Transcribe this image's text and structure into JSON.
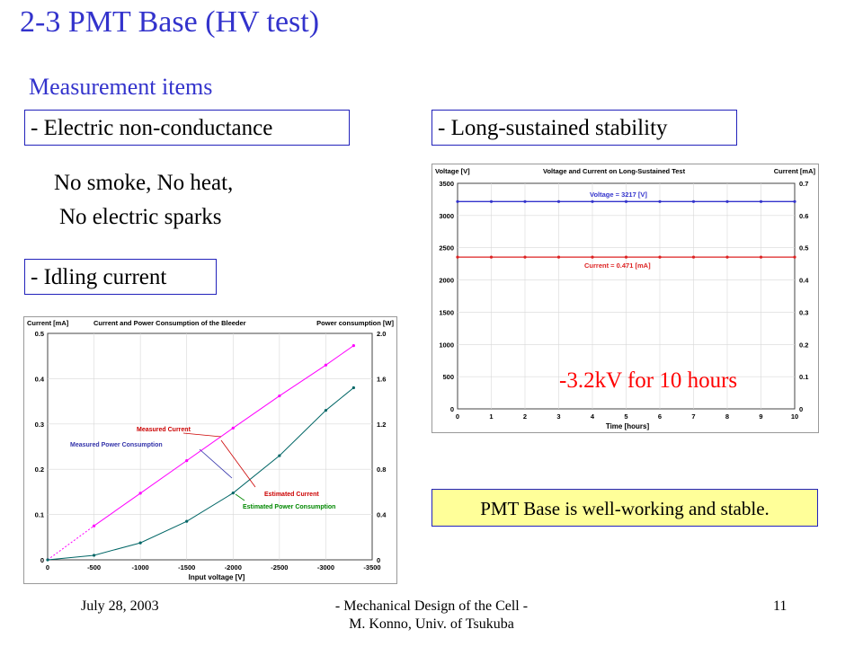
{
  "slide": {
    "title": "2-3 PMT Base (HV test)",
    "subtitle": "Measurement items",
    "item1": "- Electric non-conductance",
    "item1_desc_line1": "No smoke, No heat,",
    "item1_desc_line2": "No electric sparks",
    "item2": "- Idling current",
    "item3": "- Long-sustained stability",
    "hv_note": "-3.2kV for 10 hours",
    "conclusion": "PMT Base is well-working and stable.",
    "colors": {
      "title": "#3333cc",
      "box_border": "#2222bb",
      "note": "#ff0000",
      "conclusion_bg": "#ffff99"
    }
  },
  "footer": {
    "date": "July 28, 2003",
    "center_line1": "- Mechanical Design of the Cell -",
    "center_line2": "M. Konno, Univ. of Tsukuba",
    "page": "11"
  },
  "chart_data": [
    {
      "type": "line",
      "title": "Current and Power Consumption of the Bleeder",
      "xlabel": "Input voltage [V]",
      "ylabel": "Current [mA]",
      "y2label": "Power consumption [W]",
      "xlim": [
        0,
        -3500
      ],
      "ylim": [
        0,
        0.5
      ],
      "y2lim": [
        0,
        2.0
      ],
      "x_ticks": [
        "0",
        "-500",
        "-1000",
        "-1500",
        "-2000",
        "-2500",
        "-3000",
        "-3500"
      ],
      "y_ticks": [
        "0",
        "0.1",
        "0.2",
        "0.3",
        "0.4",
        "0.5"
      ],
      "y2_ticks": [
        "0",
        "0.4",
        "0.8",
        "1.2",
        "1.6",
        "2.0"
      ],
      "grid": true,
      "series": [
        {
          "name": "Measured Current",
          "axis": "left",
          "color": "#ff00ff",
          "x": [
            -500,
            -1000,
            -1500,
            -2000,
            -2500,
            -3000,
            -3300
          ],
          "y": [
            0.075,
            0.147,
            0.219,
            0.291,
            0.362,
            0.43,
            0.473
          ]
        },
        {
          "name": "Measured Power Consumption",
          "axis": "right",
          "color": "#006666",
          "x": [
            0,
            -500,
            -1000,
            -1500,
            -2000,
            -2500,
            -3000,
            -3300
          ],
          "y": [
            0.0,
            0.04,
            0.15,
            0.34,
            0.59,
            0.92,
            1.32,
            1.52
          ]
        }
      ],
      "annotations": [
        "Measured Current",
        "Measured Power Consumption",
        "Estimated Current",
        "Estimated Power Consumption"
      ],
      "annotation_colors": [
        "#cc0000",
        "#3333aa",
        "#cc0000",
        "#008800"
      ]
    },
    {
      "type": "line",
      "title": "Voltage and Current on Long-Sustained Test",
      "xlabel": "Time [hours]",
      "ylabel": "Voltage [V]",
      "y2label": "Current [mA]",
      "xlim": [
        0,
        10
      ],
      "ylim": [
        0,
        3500
      ],
      "y2lim": [
        0,
        0.7
      ],
      "x_ticks": [
        "0",
        "1",
        "2",
        "3",
        "4",
        "5",
        "6",
        "7",
        "8",
        "9",
        "10"
      ],
      "y_ticks": [
        "0",
        "500",
        "1000",
        "1500",
        "2000",
        "2500",
        "3000",
        "3500"
      ],
      "y2_ticks": [
        "0",
        "0.1",
        "0.2",
        "0.3",
        "0.4",
        "0.5",
        "0.6",
        "0.7"
      ],
      "grid": true,
      "series": [
        {
          "name": "Voltage = 3217 [V]",
          "axis": "left",
          "color": "#3333cc",
          "x": [
            0,
            1,
            2,
            3,
            4,
            5,
            6,
            7,
            8,
            9,
            10
          ],
          "y": [
            3217,
            3217,
            3217,
            3217,
            3217,
            3217,
            3217,
            3217,
            3217,
            3217,
            3217
          ]
        },
        {
          "name": "Current = 0.471 [mA]",
          "axis": "right",
          "color": "#dd2222",
          "x": [
            0,
            1,
            2,
            3,
            4,
            5,
            6,
            7,
            8,
            9,
            10
          ],
          "y": [
            0.471,
            0.471,
            0.471,
            0.471,
            0.471,
            0.471,
            0.471,
            0.471,
            0.471,
            0.471,
            0.471
          ]
        }
      ]
    }
  ]
}
